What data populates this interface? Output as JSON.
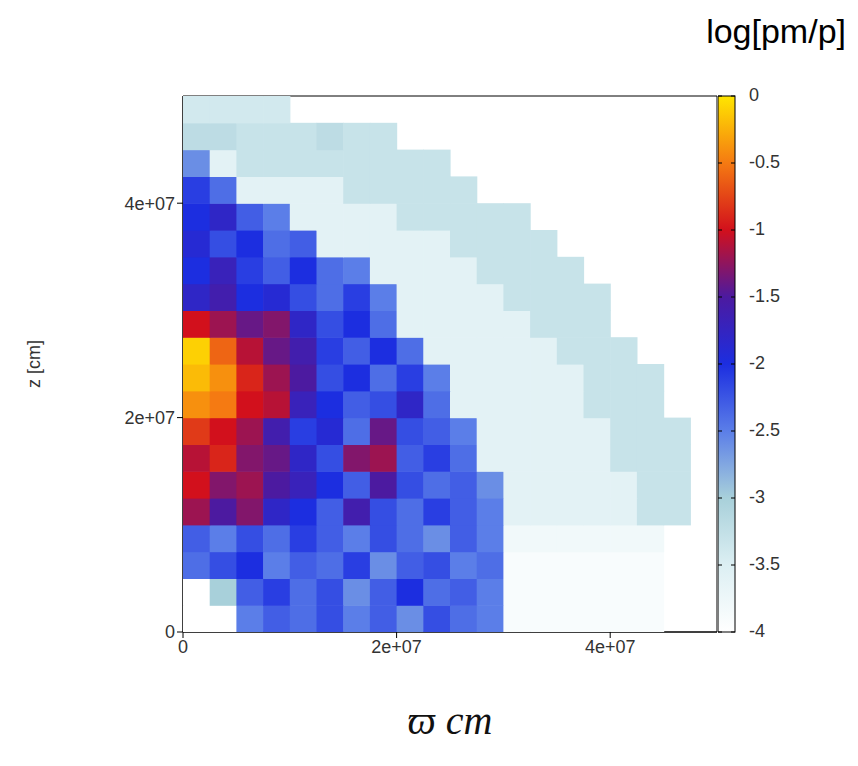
{
  "chart_data": {
    "type": "heatmap",
    "xlabel": "ϖ cm",
    "ylabel": "z [cm]",
    "xlim": [
      0,
      50000000
    ],
    "ylim": [
      0,
      50000000
    ],
    "xticks": [
      0,
      {
        "value": 20000000,
        "label": "2e+07"
      },
      {
        "value": 40000000,
        "label": "4e+07"
      }
    ],
    "yticks": [
      0,
      {
        "value": 20000000,
        "label": "2e+07"
      },
      {
        "value": 40000000,
        "label": "4e+07"
      }
    ],
    "x_bins": [
      0,
      2500000,
      5000000,
      7500000,
      10000000,
      12500000,
      15000000,
      17500000,
      20000000,
      22500000,
      25000000,
      27500000,
      30000000,
      32500000,
      35000000,
      37500000,
      40000000,
      42500000,
      45000000,
      47500000,
      50000000
    ],
    "y_bins": [
      0,
      2500000,
      5000000,
      7500000,
      10000000,
      12500000,
      15000000,
      17500000,
      20000000,
      22500000,
      25000000,
      27500000,
      30000000,
      32500000,
      35000000,
      37500000,
      40000000,
      42500000,
      45000000,
      47500000,
      50000000
    ],
    "values": [
      [
        -4,
        -4,
        -2.5,
        -2.3,
        -2.4,
        -2.2,
        -2.5,
        -2.3,
        -2.6,
        -2.2,
        -2.4,
        -2.5,
        -3.9,
        -3.9,
        -3.9,
        -3.9,
        -3.9,
        -3.9,
        null,
        null
      ],
      [
        -4,
        -3,
        -2.3,
        -2.1,
        -2.4,
        -2.2,
        -2.6,
        -2.3,
        -2.0,
        -2.4,
        -2.3,
        -2.5,
        -3.9,
        -3.9,
        -3.9,
        -3.9,
        -3.9,
        -3.9,
        null,
        null
      ],
      [
        -2.4,
        -2.2,
        -2.0,
        -2.5,
        -2.3,
        -2.4,
        -2.1,
        -2.6,
        -2.3,
        -2.2,
        -2.5,
        -2.4,
        -3.9,
        -3.9,
        -3.9,
        -3.9,
        -3.9,
        -3.9,
        null,
        null
      ],
      [
        -2.3,
        -2.5,
        -2.2,
        -2.4,
        -2.1,
        -2.3,
        -2.5,
        -2.2,
        -2.4,
        -2.6,
        -2.3,
        -2.5,
        -3.8,
        -3.8,
        -3.8,
        -3.8,
        -3.8,
        -3.8,
        null,
        null
      ],
      [
        -1.2,
        -1.5,
        -1.3,
        -1.8,
        -2.0,
        -2.3,
        -1.6,
        -2.2,
        -2.4,
        -2.1,
        -2.3,
        -2.5,
        -3.6,
        -3.6,
        -3.6,
        -3.6,
        -3.6,
        -3.3,
        -3.3,
        null
      ],
      [
        -1.0,
        -1.3,
        -1.2,
        -1.5,
        -1.7,
        -2.0,
        -2.3,
        -1.5,
        -2.2,
        -2.4,
        -2.3,
        -2.6,
        -3.6,
        -3.6,
        -3.6,
        -3.6,
        -3.6,
        -3.3,
        -3.3,
        null
      ],
      [
        -1.1,
        -0.9,
        -1.3,
        -1.4,
        -1.8,
        -2.2,
        -1.3,
        -1.2,
        -2.3,
        -2.1,
        -2.4,
        -3.6,
        -3.6,
        -3.6,
        -3.6,
        -3.6,
        -3.3,
        -3.3,
        -3.3,
        null
      ],
      [
        -0.8,
        -1.0,
        -1.2,
        -1.6,
        -2.1,
        -1.9,
        -2.4,
        -1.4,
        -2.2,
        -2.3,
        -2.5,
        -3.6,
        -3.6,
        -3.6,
        -3.6,
        -3.6,
        -3.3,
        -3.3,
        -3.3,
        null
      ],
      [
        -0.4,
        -0.5,
        -1.0,
        -1.1,
        -1.7,
        -2.0,
        -2.3,
        -2.2,
        -1.8,
        -2.4,
        -3.6,
        -3.6,
        -3.6,
        -3.6,
        -3.6,
        -3.3,
        -3.3,
        -3.3,
        null,
        null
      ],
      [
        -0.2,
        -0.4,
        -0.9,
        -1.2,
        -1.5,
        -2.2,
        -2.0,
        -2.4,
        -2.1,
        -2.5,
        -3.6,
        -3.6,
        -3.6,
        -3.6,
        -3.6,
        -3.3,
        -3.3,
        -3.3,
        null,
        null
      ],
      [
        -0.1,
        -0.6,
        -1.1,
        -1.4,
        -1.6,
        -2.1,
        -2.3,
        -2.0,
        -2.4,
        -3.6,
        -3.6,
        -3.6,
        -3.6,
        -3.6,
        -3.3,
        -3.3,
        -3.3,
        null,
        null,
        null
      ],
      [
        -1.0,
        -1.2,
        -1.4,
        -1.3,
        -1.8,
        -2.2,
        -2.0,
        -2.4,
        -3.6,
        -3.6,
        -3.6,
        -3.6,
        -3.6,
        -3.3,
        -3.3,
        -3.3,
        null,
        null,
        null,
        null
      ],
      [
        -1.8,
        -1.6,
        -2.0,
        -1.9,
        -2.2,
        -2.4,
        -2.1,
        -2.5,
        -3.6,
        -3.6,
        -3.6,
        -3.6,
        -3.3,
        -3.3,
        -3.3,
        -3.3,
        null,
        null,
        null,
        null
      ],
      [
        -2.0,
        -1.7,
        -2.1,
        -2.3,
        -2.0,
        -2.4,
        -2.5,
        -3.6,
        -3.6,
        -3.6,
        -3.6,
        -3.3,
        -3.3,
        -3.3,
        -3.3,
        null,
        null,
        null,
        null,
        null
      ],
      [
        -1.9,
        -2.2,
        -2.0,
        -2.4,
        -2.3,
        -3.6,
        -3.6,
        -3.6,
        -3.6,
        -3.6,
        -3.3,
        -3.3,
        -3.3,
        -3.3,
        null,
        null,
        null,
        null,
        null,
        null
      ],
      [
        -2.0,
        -1.8,
        -2.3,
        -2.5,
        -3.6,
        -3.6,
        -3.6,
        -3.6,
        -3.3,
        -3.3,
        -3.3,
        -3.3,
        -3.3,
        null,
        null,
        null,
        null,
        null,
        null,
        null
      ],
      [
        -2.1,
        -2.4,
        -3.6,
        -3.6,
        -3.6,
        -3.6,
        -3.3,
        -3.3,
        -3.3,
        -3.3,
        -3.3,
        null,
        null,
        null,
        null,
        null,
        null,
        null,
        null,
        null
      ],
      [
        -2.6,
        -3.6,
        -3.3,
        -3.3,
        -3.3,
        -3.3,
        -3.3,
        -3.3,
        -3.3,
        -3.3,
        null,
        null,
        null,
        null,
        null,
        null,
        null,
        null,
        null,
        null
      ],
      [
        -3.2,
        -3.2,
        -3.3,
        -3.3,
        -3.3,
        -3.2,
        -3.3,
        -3.3,
        null,
        null,
        null,
        null,
        null,
        null,
        null,
        null,
        null,
        null,
        null,
        null
      ],
      [
        -3.4,
        -3.4,
        -3.4,
        -3.4,
        null,
        null,
        null,
        null,
        null,
        null,
        null,
        null,
        null,
        null,
        null,
        null,
        null,
        null,
        null,
        null
      ]
    ],
    "colorbar": {
      "label": "log[pm/p]",
      "range": [
        -4,
        0
      ],
      "ticks": [
        0,
        -0.5,
        -1,
        -1.5,
        -2,
        -2.5,
        -3,
        -3.5,
        -4
      ]
    }
  }
}
